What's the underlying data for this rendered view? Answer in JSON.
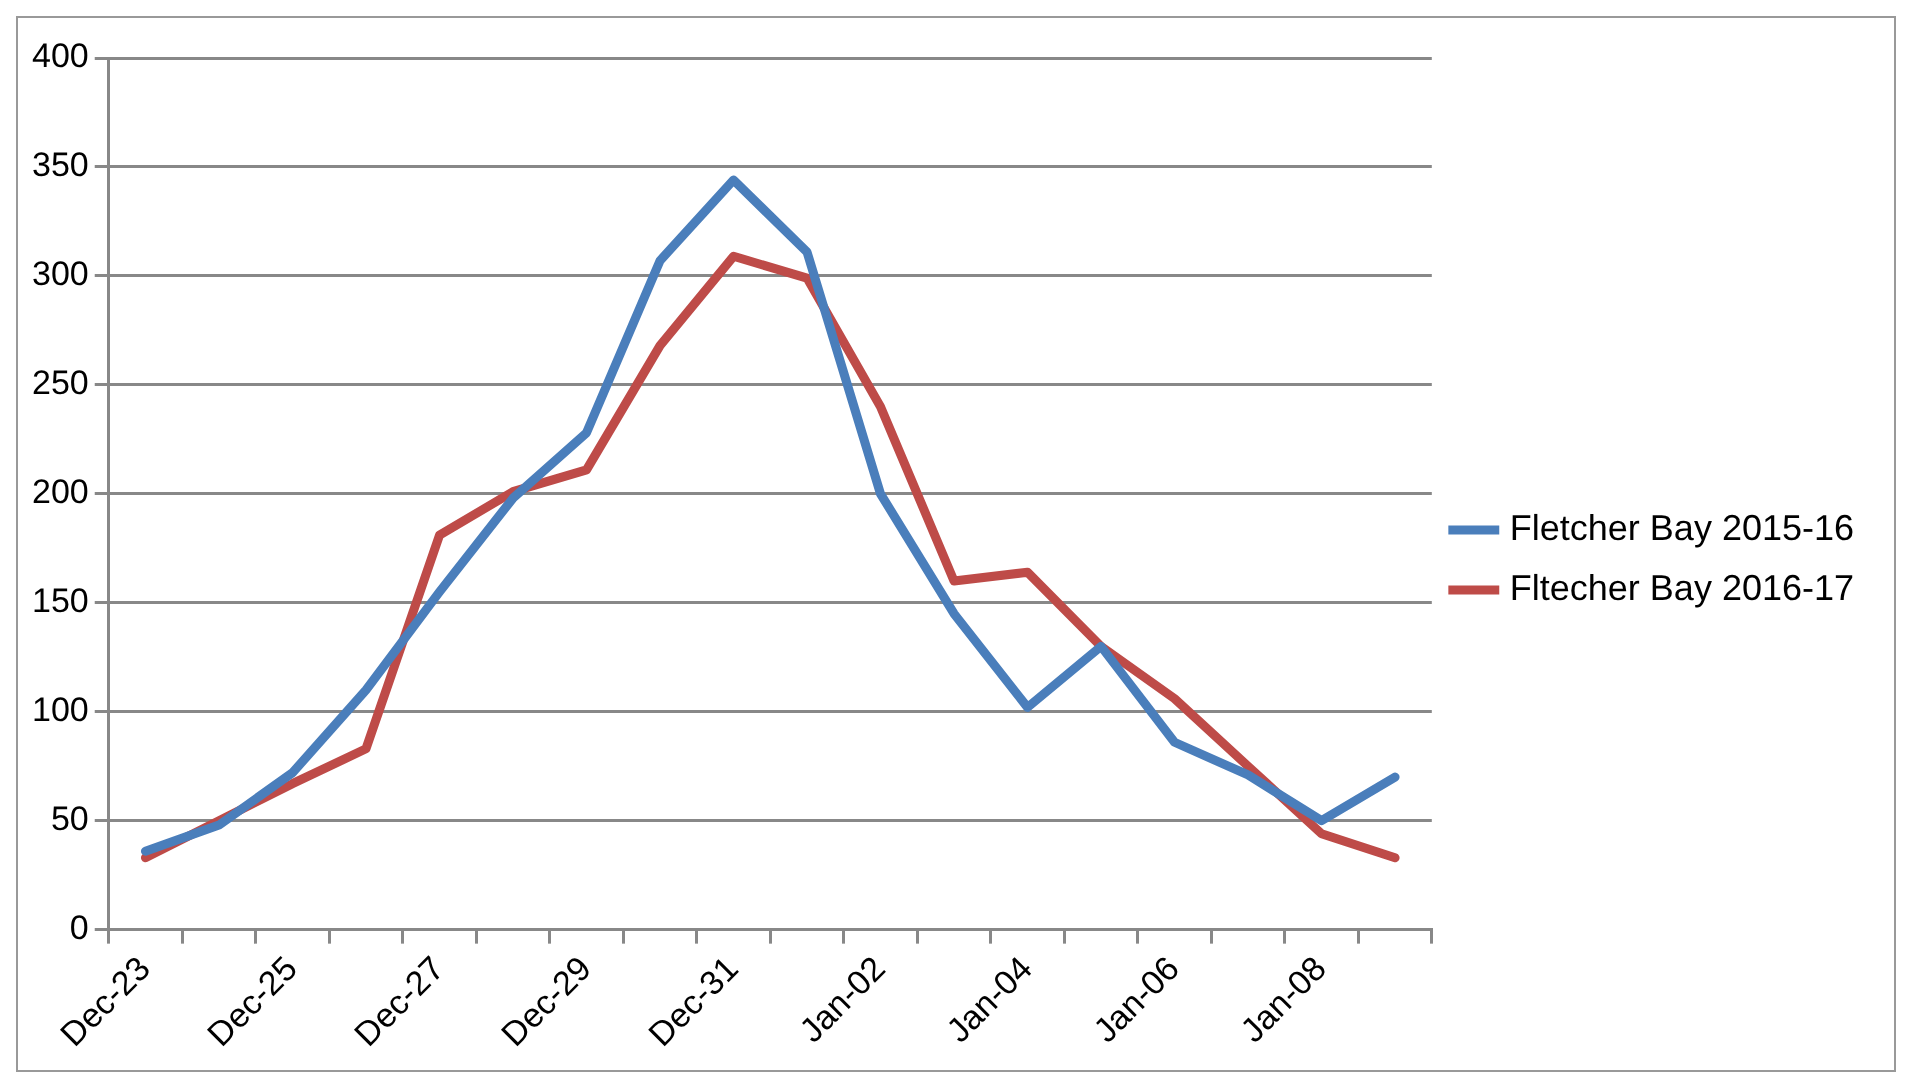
{
  "chart_data": {
    "type": "line",
    "categories": [
      "Dec-23",
      null,
      "Dec-25",
      null,
      "Dec-27",
      null,
      "Dec-29",
      null,
      "Dec-31",
      null,
      "Jan-02",
      null,
      "Jan-04",
      null,
      "Jan-06",
      null,
      "Jan-08",
      null
    ],
    "series": [
      {
        "name": "Fletcher Bay 2015-16",
        "color": "#4a7ebb",
        "values": [
          36,
          48,
          72,
          110,
          155,
          198,
          228,
          307,
          344,
          311,
          200,
          145,
          102,
          130,
          86,
          71,
          50,
          70
        ]
      },
      {
        "name": "Fltecher Bay 2016-17",
        "color": "#be4b48",
        "values": [
          33,
          50,
          67,
          83,
          181,
          201,
          211,
          268,
          309,
          299,
          240,
          160,
          164,
          130,
          106,
          75,
          44,
          33
        ]
      }
    ],
    "ylim": [
      0,
      400
    ],
    "yticks": [
      0,
      50,
      100,
      150,
      200,
      250,
      300,
      350,
      400
    ],
    "grid": "y",
    "legend": "right",
    "marker": "none",
    "line_style": "solid"
  }
}
